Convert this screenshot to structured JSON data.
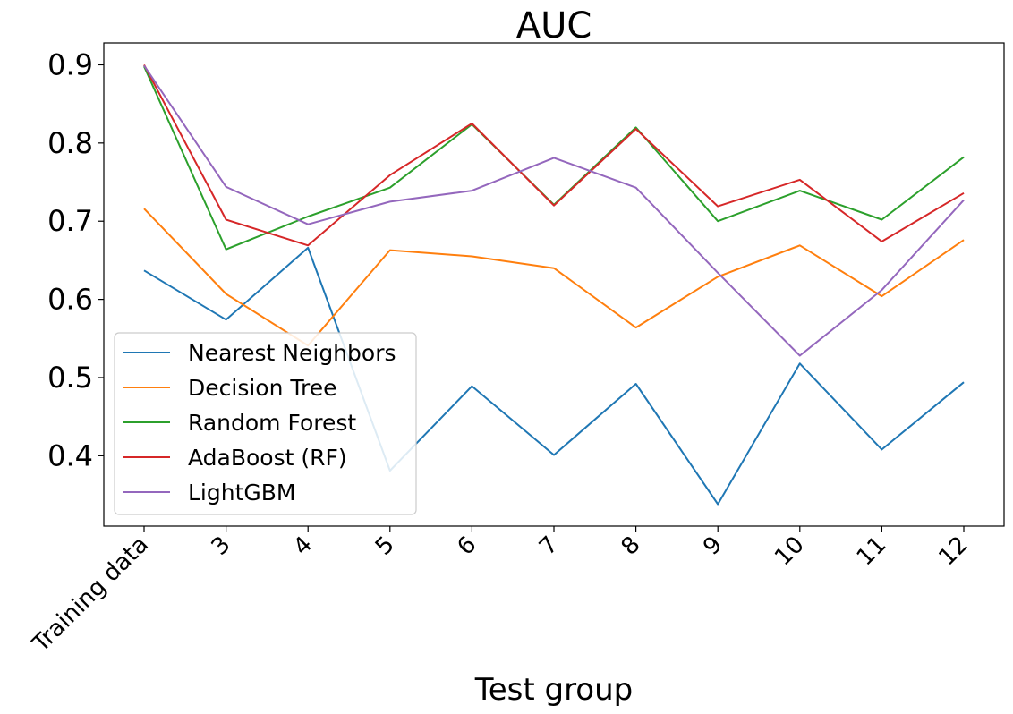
{
  "chart_data": {
    "type": "line",
    "title": "AUC",
    "xlabel": "Test group",
    "ylabel": "",
    "categories": [
      "Training data",
      "3",
      "4",
      "5",
      "6",
      "7",
      "8",
      "9",
      "10",
      "11",
      "12"
    ],
    "ylim": [
      0.31,
      0.928
    ],
    "yticks": [
      "0.4",
      "0.5",
      "0.6",
      "0.7",
      "0.8",
      "0.9"
    ],
    "grid": false,
    "legend_position": "lower-left",
    "series": [
      {
        "name": "Nearest Neighbors",
        "color": "#1f77b4",
        "values": [
          0.637,
          0.574,
          0.666,
          0.381,
          0.489,
          0.401,
          0.492,
          0.338,
          0.518,
          0.408,
          0.494
        ]
      },
      {
        "name": "Decision Tree",
        "color": "#ff7f0e",
        "values": [
          0.716,
          0.607,
          0.541,
          0.663,
          0.655,
          0.64,
          0.564,
          0.629,
          0.669,
          0.604,
          0.676
        ]
      },
      {
        "name": "Random Forest",
        "color": "#2ca02c",
        "values": [
          0.898,
          0.664,
          0.706,
          0.743,
          0.824,
          0.721,
          0.82,
          0.7,
          0.739,
          0.702,
          0.782
        ]
      },
      {
        "name": "AdaBoost (RF)",
        "color": "#d62728",
        "values": [
          0.9,
          0.702,
          0.669,
          0.759,
          0.825,
          0.72,
          0.818,
          0.719,
          0.753,
          0.674,
          0.736
        ]
      },
      {
        "name": "LightGBM",
        "color": "#9467bd",
        "values": [
          0.899,
          0.744,
          0.696,
          0.725,
          0.739,
          0.781,
          0.743,
          0.634,
          0.528,
          0.612,
          0.727
        ]
      }
    ]
  }
}
